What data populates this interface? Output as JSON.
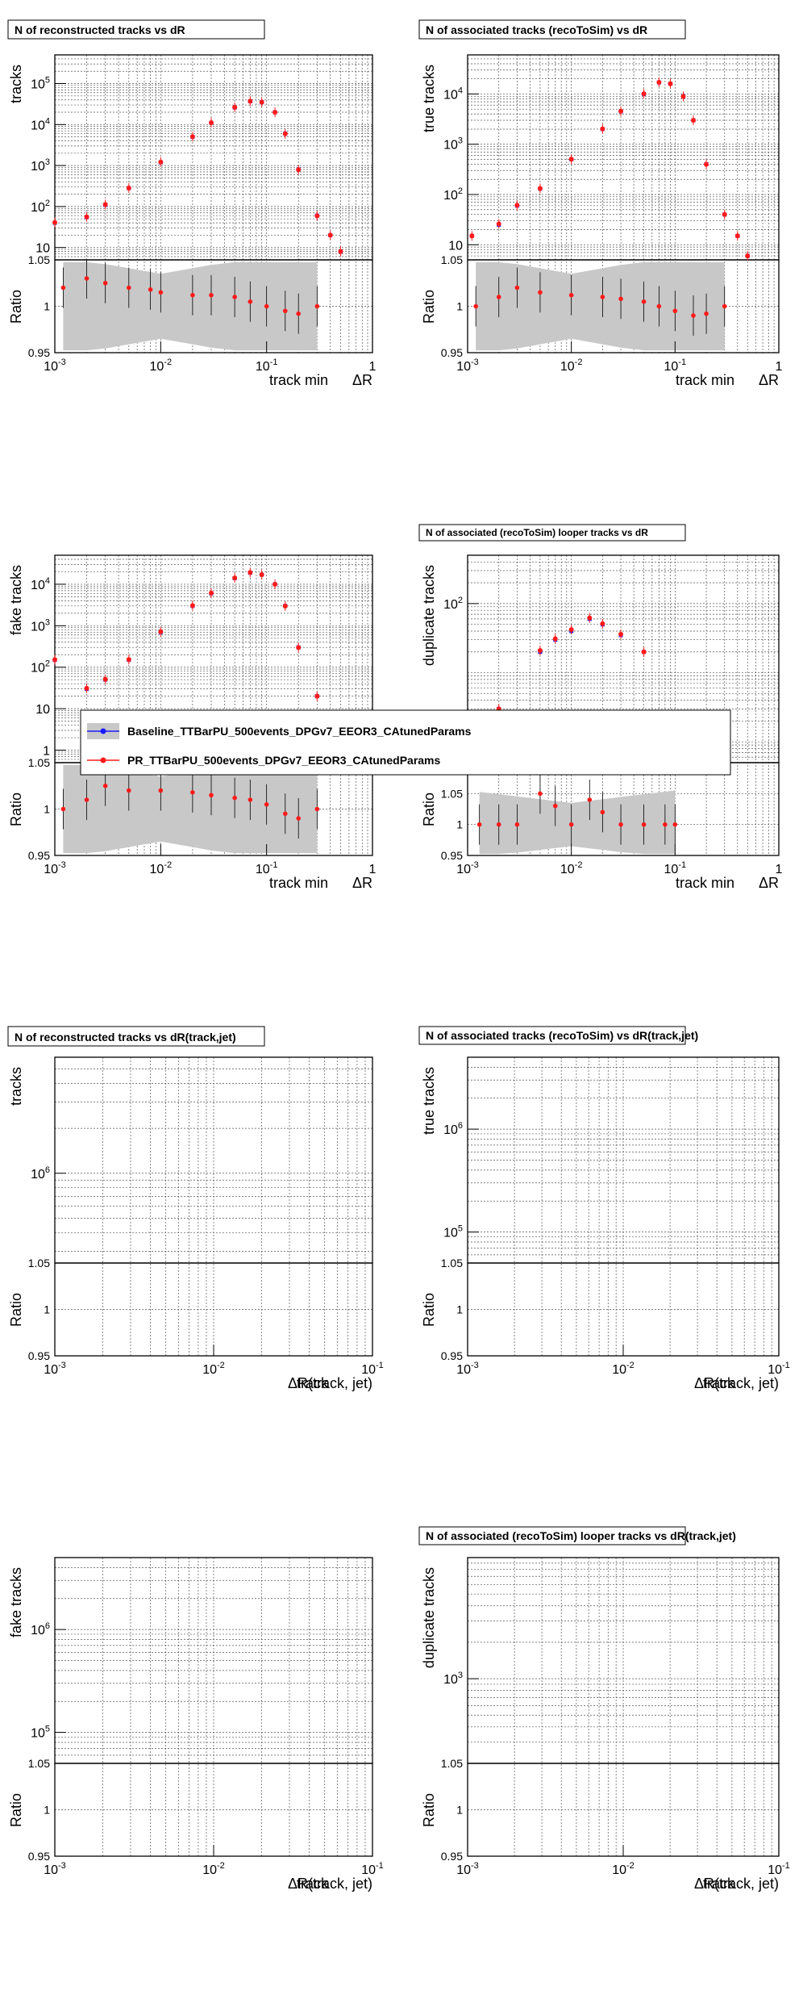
{
  "colors": {
    "baseline": "#1a1aff",
    "pr": "#ff1a1a",
    "band": "#c8c8c8",
    "grid": "#555555",
    "frame": "#000000"
  },
  "legend": {
    "entries": [
      {
        "name": "Baseline_TTBarPU_500events_DPGv7_EEOR3_CAtunedParams",
        "color": "#1a1aff"
      },
      {
        "name": "PR_TTBarPU_500events_DPGv7_EEOR3_CAtunedParams",
        "color": "#ff1a1a"
      }
    ]
  },
  "chart_data": [
    {
      "id": "p1",
      "type": "scatter",
      "title": "N of reconstructed tracks vs dR",
      "ylabel": "tracks",
      "ratio_label": "Ratio",
      "xlabel_a": "track min",
      "xlabel_b": "ΔR",
      "xlim": [
        0.001,
        1
      ],
      "ylim": [
        5,
        500000
      ],
      "log_y": true,
      "log_x": true,
      "ratio_ylim": [
        0.95,
        1.05
      ],
      "x_ticks": [
        "10^-3",
        "10^-2",
        "10^-1",
        "1"
      ],
      "y_ticks": [
        "10",
        "10^2",
        "10^3",
        "10^4",
        "10^5"
      ],
      "ratio_ticks": [
        "0.95",
        "1",
        "1.05"
      ],
      "series": [
        {
          "name": "Baseline_TTBarPU_500events_DPGv7_EEOR3_CAtunedParams",
          "x": [
            0.001,
            0.002,
            0.003,
            0.005,
            0.01,
            0.02,
            0.03,
            0.05,
            0.07,
            0.09,
            0.12,
            0.15,
            0.2,
            0.3,
            0.4,
            0.5
          ],
          "y": [
            40,
            55,
            110,
            280,
            1200,
            5000,
            11000,
            26000,
            37000,
            35000,
            20000,
            6000,
            800,
            60,
            20,
            8
          ]
        },
        {
          "name": "PR_TTBarPU_500events_DPGv7_EEOR3_CAtunedParams",
          "x": [
            0.001,
            0.002,
            0.003,
            0.005,
            0.01,
            0.02,
            0.03,
            0.05,
            0.07,
            0.09,
            0.12,
            0.15,
            0.2,
            0.3,
            0.4,
            0.5
          ],
          "y": [
            41,
            56,
            112,
            283,
            1215,
            5060,
            11130,
            26250,
            37200,
            35000,
            19900,
            5950,
            790,
            59,
            20,
            8
          ]
        }
      ],
      "ratio": {
        "x": [
          0.0012,
          0.002,
          0.003,
          0.005,
          0.008,
          0.01,
          0.02,
          0.03,
          0.05,
          0.07,
          0.1,
          0.15,
          0.2,
          0.3
        ],
        "y": [
          1.02,
          1.03,
          1.025,
          1.02,
          1.018,
          1.015,
          1.012,
          1.012,
          1.01,
          1.005,
          1.0,
          0.995,
          0.992,
          1.0
        ]
      }
    },
    {
      "id": "p2",
      "type": "scatter",
      "title": "N of associated tracks (recoToSim) vs dR",
      "ylabel": "true tracks",
      "ratio_label": "Ratio",
      "xlabel_a": "track min",
      "xlabel_b": "ΔR",
      "xlim": [
        0.001,
        1
      ],
      "ylim": [
        5,
        60000
      ],
      "log_y": true,
      "log_x": true,
      "ratio_ylim": [
        0.95,
        1.05
      ],
      "x_ticks": [
        "10^-3",
        "10^-2",
        "10^-1",
        "1"
      ],
      "y_ticks": [
        "10",
        "10^2",
        "10^3",
        "10^4"
      ],
      "ratio_ticks": [
        "0.95",
        "1",
        "1.05"
      ],
      "series": [
        {
          "name": "Baseline_TTBarPU_500events_DPGv7_EEOR3_CAtunedParams",
          "x": [
            0.0011,
            0.002,
            0.003,
            0.005,
            0.01,
            0.02,
            0.03,
            0.05,
            0.07,
            0.09,
            0.12,
            0.15,
            0.2,
            0.3,
            0.4,
            0.5
          ],
          "y": [
            15,
            25,
            60,
            130,
            500,
            2000,
            4500,
            10000,
            17000,
            16000,
            9000,
            3000,
            400,
            40,
            15,
            6
          ]
        },
        {
          "name": "PR_TTBarPU_500events_DPGv7_EEOR3_CAtunedParams",
          "x": [
            0.0011,
            0.002,
            0.003,
            0.005,
            0.01,
            0.02,
            0.03,
            0.05,
            0.07,
            0.09,
            0.12,
            0.15,
            0.2,
            0.3,
            0.4,
            0.5
          ],
          "y": [
            15,
            26,
            61,
            132,
            505,
            2020,
            4550,
            10100,
            17100,
            16000,
            8950,
            2990,
            398,
            40,
            15,
            6
          ]
        }
      ],
      "ratio": {
        "x": [
          0.0012,
          0.002,
          0.003,
          0.005,
          0.01,
          0.02,
          0.03,
          0.05,
          0.07,
          0.1,
          0.15,
          0.2,
          0.3
        ],
        "y": [
          1.0,
          1.01,
          1.02,
          1.015,
          1.012,
          1.01,
          1.008,
          1.005,
          1.0,
          0.995,
          0.99,
          0.992,
          1.0
        ]
      }
    },
    {
      "id": "p3",
      "type": "scatter",
      "title": "",
      "ylabel": "fake tracks",
      "ratio_label": "Ratio",
      "xlabel_a": "track min",
      "xlabel_b": "ΔR",
      "xlim": [
        0.001,
        1
      ],
      "ylim": [
        0.5,
        50000
      ],
      "log_y": true,
      "log_x": true,
      "ratio_ylim": [
        0.95,
        1.05
      ],
      "x_ticks": [
        "10^-3",
        "10^-2",
        "10^-1",
        "1"
      ],
      "y_ticks": [
        "1",
        "10",
        "10^2",
        "10^3",
        "10^4"
      ],
      "ratio_ticks": [
        "0.95",
        "1",
        "1.05"
      ],
      "series": [
        {
          "name": "Baseline_TTBarPU_500events_DPGv7_EEOR3_CAtunedParams",
          "x": [
            0.001,
            0.002,
            0.003,
            0.005,
            0.01,
            0.02,
            0.03,
            0.05,
            0.07,
            0.09,
            0.12,
            0.15,
            0.2,
            0.3,
            0.4,
            0.5
          ],
          "y": [
            150,
            30,
            50,
            150,
            700,
            3000,
            6000,
            14000,
            19000,
            17000,
            10000,
            3000,
            300,
            20,
            3,
            1
          ]
        },
        {
          "name": "PR_TTBarPU_500events_DPGv7_EEOR3_CAtunedParams",
          "x": [
            0.001,
            0.002,
            0.003,
            0.005,
            0.01,
            0.02,
            0.03,
            0.05,
            0.07,
            0.09,
            0.12,
            0.15,
            0.2,
            0.3,
            0.4,
            0.5
          ],
          "y": [
            152,
            31,
            51,
            153,
            715,
            3060,
            6110,
            14200,
            19200,
            17100,
            9950,
            2980,
            298,
            20,
            3,
            1
          ]
        }
      ],
      "ratio": {
        "x": [
          0.0012,
          0.002,
          0.003,
          0.005,
          0.01,
          0.02,
          0.03,
          0.05,
          0.07,
          0.1,
          0.15,
          0.2,
          0.3
        ],
        "y": [
          1.0,
          1.01,
          1.025,
          1.02,
          1.02,
          1.018,
          1.015,
          1.012,
          1.01,
          1.005,
          0.995,
          0.99,
          1.0
        ]
      }
    },
    {
      "id": "p4",
      "type": "scatter",
      "title": "N of associated (recoToSim) looper tracks vs dR",
      "ylabel": "duplicate tracks",
      "ratio_label": "Ratio",
      "xlabel_a": "track min",
      "xlabel_b": "ΔR",
      "xlim": [
        0.001,
        1
      ],
      "ylim": [
        0.5,
        500
      ],
      "log_y": true,
      "log_x": true,
      "ratio_ylim": [
        0.95,
        1.1
      ],
      "x_ticks": [
        "10^-3",
        "10^-2",
        "10^-1",
        "1"
      ],
      "y_ticks": [
        "1",
        "10^2"
      ],
      "ratio_ticks": [
        "0.95",
        "1",
        "1.05"
      ],
      "series": [
        {
          "name": "Baseline_TTBarPU_500events_DPGv7_EEOR3_CAtunedParams",
          "x": [
            0.0013,
            0.002,
            0.003,
            0.005,
            0.007,
            0.01,
            0.015,
            0.02,
            0.03,
            0.05,
            0.08,
            0.1
          ],
          "y": [
            1,
            3,
            2,
            20,
            30,
            40,
            60,
            50,
            35,
            20,
            2,
            1
          ]
        },
        {
          "name": "PR_TTBarPU_500events_DPGv7_EEOR3_CAtunedParams",
          "x": [
            0.0013,
            0.002,
            0.003,
            0.005,
            0.007,
            0.01,
            0.015,
            0.02,
            0.03,
            0.05,
            0.08,
            0.1
          ],
          "y": [
            1,
            3,
            2,
            21,
            31,
            42,
            62,
            51,
            36,
            20,
            2,
            1
          ]
        }
      ],
      "ratio": {
        "x": [
          0.0013,
          0.002,
          0.003,
          0.005,
          0.007,
          0.01,
          0.015,
          0.02,
          0.03,
          0.05,
          0.08,
          0.1
        ],
        "y": [
          1.0,
          1.0,
          1.0,
          1.05,
          1.03,
          1.0,
          1.04,
          1.02,
          1.0,
          1.0,
          1.0,
          1.0
        ]
      }
    },
    {
      "id": "p5",
      "type": "scatter",
      "title": "N of reconstructed tracks vs dR(track,jet)",
      "ylabel": "tracks",
      "ratio_label": "Ratio",
      "xlabel_a": "track",
      "xlabel_b": "ΔR(track, jet)",
      "xlim": [
        0.001,
        0.1
      ],
      "ylim": [
        250000,
        6000000
      ],
      "log_y": true,
      "log_x": true,
      "ratio_ylim": [
        0.95,
        1.05
      ],
      "x_ticks": [
        "10^-3",
        "10^-2",
        "10^-1"
      ],
      "y_ticks": [
        "10^6"
      ],
      "ratio_ticks": [
        "0.95",
        "1",
        "1.05"
      ],
      "series": [],
      "ratio": {
        "x": [],
        "y": []
      }
    },
    {
      "id": "p6",
      "type": "scatter",
      "title": "N of associated tracks (recoToSim) vs dR(track,jet)",
      "ylabel": "true tracks",
      "ratio_label": "Ratio",
      "xlabel_a": "track",
      "xlabel_b": "ΔR(track, jet)",
      "xlim": [
        0.001,
        0.1
      ],
      "ylim": [
        50000,
        5000000
      ],
      "log_y": true,
      "log_x": true,
      "ratio_ylim": [
        0.95,
        1.05
      ],
      "x_ticks": [
        "10^-3",
        "10^-2",
        "10^-1"
      ],
      "y_ticks": [
        "10^5",
        "10^6"
      ],
      "ratio_ticks": [
        "0.95",
        "1",
        "1.05"
      ],
      "series": [],
      "ratio": {
        "x": [],
        "y": []
      }
    },
    {
      "id": "p7",
      "type": "scatter",
      "title": "",
      "ylabel": "fake tracks",
      "ratio_label": "Ratio",
      "xlabel_a": "track",
      "xlabel_b": "ΔR(track, jet)",
      "xlim": [
        0.001,
        0.1
      ],
      "ylim": [
        50000,
        5000000
      ],
      "log_y": true,
      "log_x": true,
      "ratio_ylim": [
        0.95,
        1.05
      ],
      "x_ticks": [
        "10^-3",
        "10^-2",
        "10^-1"
      ],
      "y_ticks": [
        "10^5",
        "10^6"
      ],
      "ratio_ticks": [
        "0.95",
        "1",
        "1.05"
      ],
      "series": [],
      "ratio": {
        "x": [],
        "y": []
      }
    },
    {
      "id": "p8",
      "type": "scatter",
      "title": "N of associated (recoToSim) looper tracks vs dR(track,jet)",
      "ylabel": "duplicate tracks",
      "ratio_label": "Ratio",
      "xlabel_a": "track",
      "xlabel_b": "ΔR(track, jet)",
      "xlim": [
        0.001,
        0.1
      ],
      "ylim": [
        200,
        10000
      ],
      "log_y": true,
      "log_x": true,
      "ratio_ylim": [
        0.95,
        1.05
      ],
      "x_ticks": [
        "10^-3",
        "10^-2",
        "10^-1"
      ],
      "y_ticks": [
        "10^3"
      ],
      "ratio_ticks": [
        "0.95",
        "1",
        "1.05"
      ],
      "series": [],
      "ratio": {
        "x": [],
        "y": []
      }
    }
  ]
}
